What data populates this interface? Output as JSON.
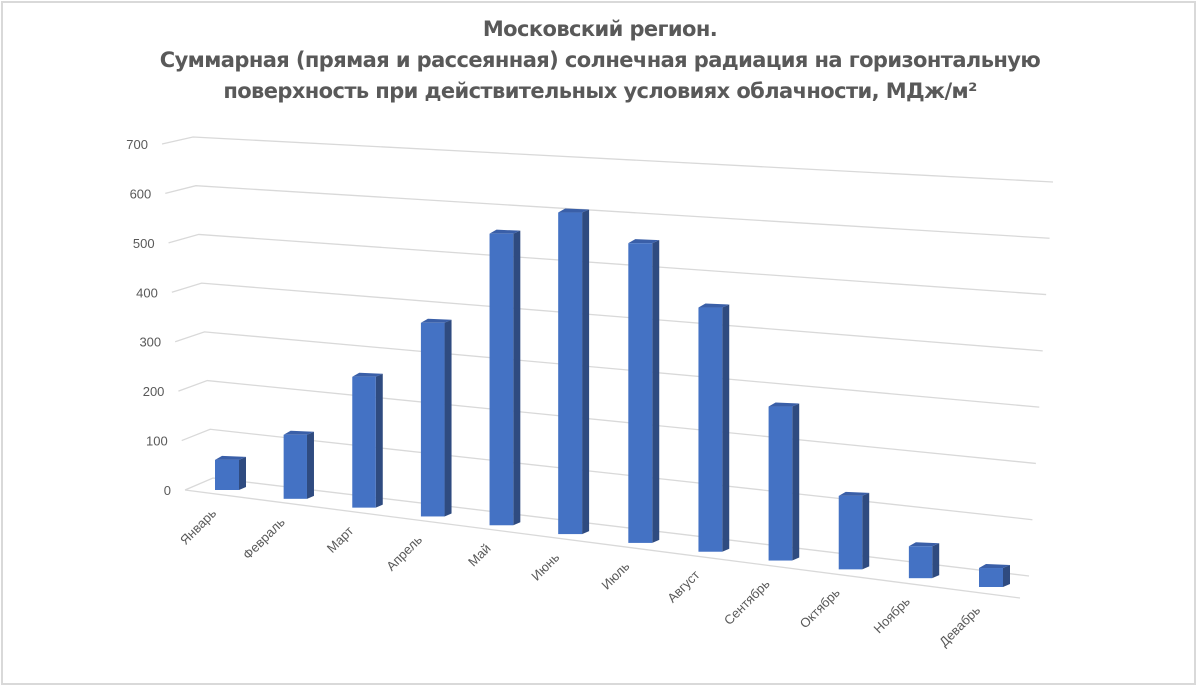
{
  "chart_data": {
    "type": "bar",
    "style": "3d-column",
    "title": "Московский регион. Суммарная (прямая и рассеянная) солнечная радиация на горизонтальную поверхность при действительных условиях облачности, МДж/м²",
    "title_lines": [
      "Московский регион.",
      "Суммарная (прямая и рассеянная) солнечная радиация на горизонтальную",
      "поверхность при действительных условиях облачности, МДж/м²"
    ],
    "categories": [
      "Январь",
      "Февраль",
      "Март",
      "Апрель",
      "Май",
      "Июнь",
      "Июль",
      "Август",
      "Сентябрь",
      "Октябрь",
      "Ноябрь",
      "Девабрь"
    ],
    "values": [
      58,
      122,
      247,
      362,
      540,
      590,
      545,
      440,
      275,
      130,
      56,
      33
    ],
    "xlabel": "",
    "ylabel": "",
    "ylim": [
      0,
      700
    ],
    "yticks": [
      "0",
      "100",
      "200",
      "300",
      "400",
      "500",
      "600",
      "700"
    ],
    "grid": true,
    "legend": "none",
    "colors": {
      "bar_front": "#4472c4",
      "bar_side": "#2f4b80",
      "bar_top": "#3a5fa8",
      "grid": "#d9d9d9",
      "text": "#595959",
      "border": "#d9d9d9"
    }
  }
}
